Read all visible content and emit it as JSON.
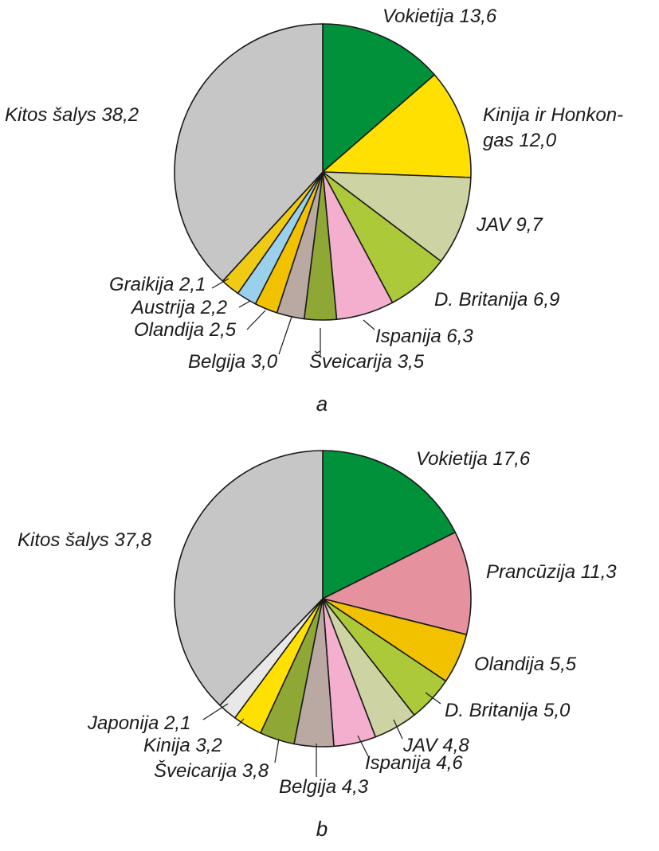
{
  "chart_data": [
    {
      "type": "pie",
      "caption": "a",
      "slices": [
        {
          "label": "Vokietija",
          "value": 13.6,
          "display": "13,6",
          "color": "#00913a"
        },
        {
          "label": "Kinija ir Honkongas",
          "label_line1": "Kinija ir Honkon-",
          "label_line2": "gas",
          "value": 12.0,
          "display": "12,0",
          "color": "#ffe000"
        },
        {
          "label": "JAV",
          "value": 9.7,
          "display": "9,7",
          "color": "#cdd3a3"
        },
        {
          "label": "D. Britanija",
          "value": 6.9,
          "display": "6,9",
          "color": "#acc93a"
        },
        {
          "label": "Ispanija",
          "value": 6.3,
          "display": "6,3",
          "color": "#f4afcf"
        },
        {
          "label": "Šveicarija",
          "value": 3.5,
          "display": "3,5",
          "color": "#8fa835"
        },
        {
          "label": "Belgija",
          "value": 3.0,
          "display": "3,0",
          "color": "#b9a9a2"
        },
        {
          "label": "Olandija",
          "value": 2.5,
          "display": "2,5",
          "color": "#f2c200"
        },
        {
          "label": "Austrija",
          "value": 2.2,
          "display": "2,2",
          "color": "#9bd0ec"
        },
        {
          "label": "Graikija",
          "value": 2.1,
          "display": "2,1",
          "color": "#f0cb14"
        },
        {
          "label": "Kitos šalys",
          "value": 38.2,
          "display": "38,2",
          "color": "#c6c6c6"
        }
      ]
    },
    {
      "type": "pie",
      "caption": "b",
      "slices": [
        {
          "label": "Vokietija",
          "value": 17.6,
          "display": "17,6",
          "color": "#00913a"
        },
        {
          "label": "Prancūzija",
          "value": 11.3,
          "display": "11,3",
          "color": "#e6919e"
        },
        {
          "label": "Olandija",
          "value": 5.5,
          "display": "5,5",
          "color": "#f2c200"
        },
        {
          "label": "D. Britanija",
          "value": 5.0,
          "display": "5,0",
          "color": "#acc93a"
        },
        {
          "label": "JAV",
          "value": 4.8,
          "display": "4,8",
          "color": "#cdd3a3"
        },
        {
          "label": "Ispanija",
          "value": 4.6,
          "display": "4,6",
          "color": "#f4afcf"
        },
        {
          "label": "Belgija",
          "value": 4.3,
          "display": "4,3",
          "color": "#b9a9a2"
        },
        {
          "label": "Šveicarija",
          "value": 3.8,
          "display": "3,8",
          "color": "#8fa835"
        },
        {
          "label": "Kinija",
          "value": 3.2,
          "display": "3,2",
          "color": "#ffe000"
        },
        {
          "label": "Japonija",
          "value": 2.1,
          "display": "2,1",
          "color": "#e8e8e8"
        },
        {
          "label": "Kitos šalys",
          "value": 37.8,
          "display": "37,8",
          "color": "#c6c6c6"
        }
      ]
    }
  ]
}
